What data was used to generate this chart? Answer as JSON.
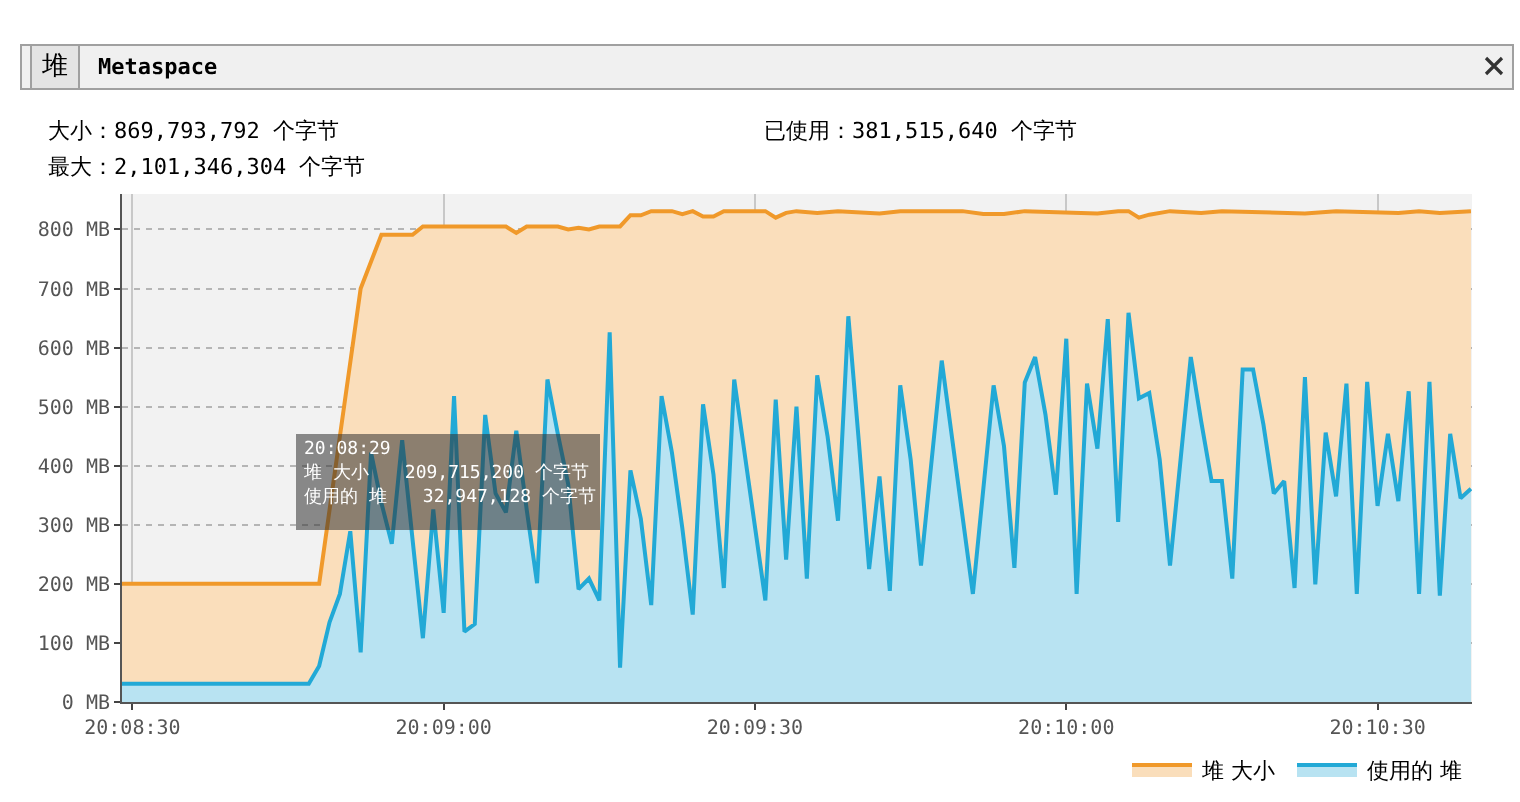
{
  "chart_data": {
    "type": "area",
    "annotations": [
      "堆",
      "Metaspace",
      "大小：869,793,792 个字节",
      "已使用：381,515,640 个字节",
      "最大：2,101,346,304 个字节",
      "20:08:29",
      "堆 大小　　209,715,200 个字节",
      "使用的 堆　　32,947,128 个字节"
    ],
    "xlim": [
      20.141389,
      20.177528
    ],
    "xticks": [
      {
        "value": 20.141667,
        "label": "20:08:30"
      },
      {
        "value": 20.15,
        "label": "20:09:00"
      },
      {
        "value": 20.158333,
        "label": "20:09:30"
      },
      {
        "value": 20.166667,
        "label": "20:10:00"
      },
      {
        "value": 20.175,
        "label": "20:10:30"
      }
    ],
    "ylim": [
      0,
      860
    ],
    "yticks": [
      {
        "value": 0,
        "label": "0 MB"
      },
      {
        "value": 100,
        "label": "100 MB"
      },
      {
        "value": 200,
        "label": "200 MB"
      },
      {
        "value": 300,
        "label": "300 MB"
      },
      {
        "value": 400,
        "label": "400 MB"
      },
      {
        "value": 500,
        "label": "500 MB"
      },
      {
        "value": 600,
        "label": "600 MB"
      },
      {
        "value": 700,
        "label": "700 MB"
      },
      {
        "value": 800,
        "label": "800 MB"
      }
    ],
    "grid": true,
    "legend": "bottom right",
    "series": [
      {
        "name": "堆 大小",
        "color": "#f0992a",
        "x": [
          20.141389,
          20.146667,
          20.147778,
          20.148333,
          20.149167,
          20.149444,
          20.151667,
          20.151944,
          20.152222,
          20.153056,
          20.153333,
          20.153611,
          20.153889,
          20.154167,
          20.154722,
          20.155,
          20.155278,
          20.155556,
          20.156111,
          20.156389,
          20.156667,
          20.156944,
          20.157222,
          20.1575,
          20.158611,
          20.158889,
          20.159167,
          20.159444,
          20.16,
          20.160556,
          20.161667,
          20.162222,
          20.163889,
          20.164444,
          20.165,
          20.165556,
          20.1675,
          20.168056,
          20.168333,
          20.168611,
          20.168889,
          20.169444,
          20.170278,
          20.170833,
          20.173056,
          20.173889,
          20.175556,
          20.176111,
          20.176667,
          20.1775
        ],
        "values": [
          200,
          200,
          700,
          791,
          791,
          805,
          805,
          794,
          805,
          805,
          800,
          803,
          800,
          805,
          805,
          824,
          824,
          831,
          831,
          826,
          831,
          822,
          822,
          831,
          831,
          820,
          828,
          831,
          828,
          831,
          827,
          831,
          831,
          826,
          826,
          831,
          827,
          831,
          831,
          820,
          825,
          831,
          828,
          831,
          827,
          831,
          828,
          831,
          828,
          831
        ]
      },
      {
        "name": "使用的 堆",
        "color": "#22a9d6",
        "x": [
          20.141389,
          20.146389,
          20.146667,
          20.146944,
          20.147222,
          20.1475,
          20.147778,
          20.148056,
          20.148333,
          20.148611,
          20.148889,
          20.149444,
          20.149722,
          20.15,
          20.150278,
          20.150556,
          20.150833,
          20.151111,
          20.151389,
          20.151667,
          20.151944,
          20.152222,
          20.1525,
          20.152778,
          20.153056,
          20.153333,
          20.153611,
          20.153889,
          20.154167,
          20.154444,
          20.154722,
          20.155,
          20.155278,
          20.155556,
          20.155833,
          20.156111,
          20.156389,
          20.156667,
          20.156944,
          20.157222,
          20.1575,
          20.157778,
          20.158611,
          20.158889,
          20.159167,
          20.159444,
          20.159722,
          20.16,
          20.160278,
          20.160556,
          20.160833,
          20.161111,
          20.161389,
          20.161667,
          20.161944,
          20.162222,
          20.1625,
          20.162778,
          20.163333,
          20.164167,
          20.164722,
          20.165,
          20.165278,
          20.165556,
          20.165833,
          20.166111,
          20.166389,
          20.166667,
          20.166944,
          20.167222,
          20.1675,
          20.167778,
          20.168056,
          20.168333,
          20.168611,
          20.168889,
          20.169167,
          20.169444,
          20.17,
          20.170278,
          20.170556,
          20.170833,
          20.171111,
          20.171389,
          20.171667,
          20.171944,
          20.172222,
          20.1725,
          20.172778,
          20.173056,
          20.173333,
          20.173611,
          20.173889,
          20.174167,
          20.174444,
          20.174722,
          20.175,
          20.175278,
          20.175556,
          20.175833,
          20.176111,
          20.176389,
          20.176667,
          20.176944,
          20.177222,
          20.1775
        ],
        "values": [
          31,
          31,
          61,
          135,
          183,
          289,
          84,
          422,
          337,
          268,
          443,
          108,
          326,
          151,
          518,
          119,
          132,
          486,
          353,
          321,
          459,
          326,
          201,
          546,
          454,
          369,
          191,
          209,
          172,
          626,
          58,
          392,
          310,
          164,
          518,
          422,
          294,
          148,
          504,
          385,
          193,
          546,
          172,
          512,
          241,
          500,
          209,
          553,
          449,
          307,
          653,
          443,
          225,
          382,
          188,
          536,
          411,
          231,
          578,
          183,
          536,
          433,
          227,
          541,
          584,
          486,
          351,
          615,
          183,
          539,
          429,
          648,
          305,
          659,
          514,
          523,
          411,
          231,
          584,
          475,
          374,
          374,
          209,
          563,
          563,
          470,
          353,
          374,
          193,
          550,
          199,
          456,
          348,
          539,
          183,
          542,
          332,
          454,
          340,
          526,
          183,
          542,
          180,
          454,
          345,
          361
        ]
      }
    ]
  }
}
